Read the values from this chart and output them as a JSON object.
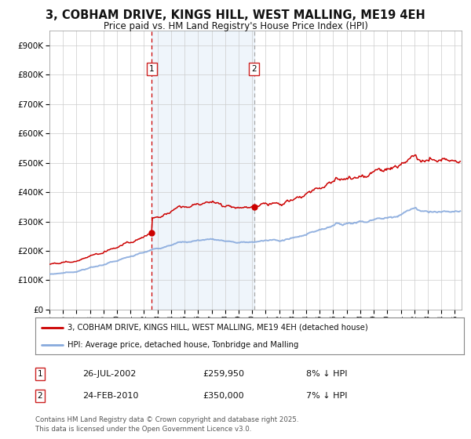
{
  "title": "3, COBHAM DRIVE, KINGS HILL, WEST MALLING, ME19 4EH",
  "subtitle": "Price paid vs. HM Land Registry's House Price Index (HPI)",
  "legend_property": "3, COBHAM DRIVE, KINGS HILL, WEST MALLING, ME19 4EH (detached house)",
  "legend_hpi": "HPI: Average price, detached house, Tonbridge and Malling",
  "annotation1_date": "26-JUL-2002",
  "annotation1_price": "£259,950",
  "annotation1_hpi": "8% ↓ HPI",
  "annotation1_label": "1",
  "annotation1_year": 2002.57,
  "annotation1_price_val": 259950,
  "annotation2_date": "24-FEB-2010",
  "annotation2_price": "£350,000",
  "annotation2_hpi": "7% ↓ HPI",
  "annotation2_label": "2",
  "annotation2_year": 2010.14,
  "annotation2_price_val": 350000,
  "footer": "Contains HM Land Registry data © Crown copyright and database right 2025.\nThis data is licensed under the Open Government Licence v3.0.",
  "ylim": [
    0,
    950000
  ],
  "yticks": [
    0,
    100000,
    200000,
    300000,
    400000,
    500000,
    600000,
    700000,
    800000,
    900000
  ],
  "background_color": "#ffffff",
  "property_color": "#cc0000",
  "hpi_color": "#88aadd",
  "vline1_color": "#cc0000",
  "vline2_color": "#aaaaaa",
  "shade_color": "#ddeeff",
  "dot_color": "#cc0000"
}
